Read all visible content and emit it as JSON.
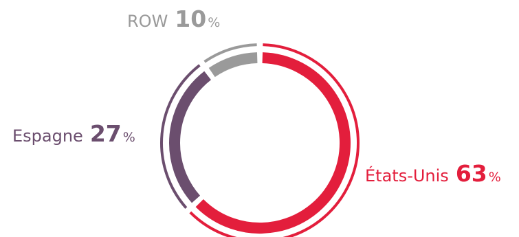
{
  "chart_data": {
    "type": "pie",
    "style": "donut",
    "unit": "%",
    "slices": [
      {
        "name": "États-Unis",
        "value": 63,
        "unit": "%",
        "color": "#e31e3c"
      },
      {
        "name": "Espagne",
        "value": 27,
        "unit": "%",
        "color": "#6b4e6e"
      },
      {
        "name": "ROW",
        "value": 10,
        "unit": "%",
        "color": "#9a9a9a"
      }
    ]
  }
}
